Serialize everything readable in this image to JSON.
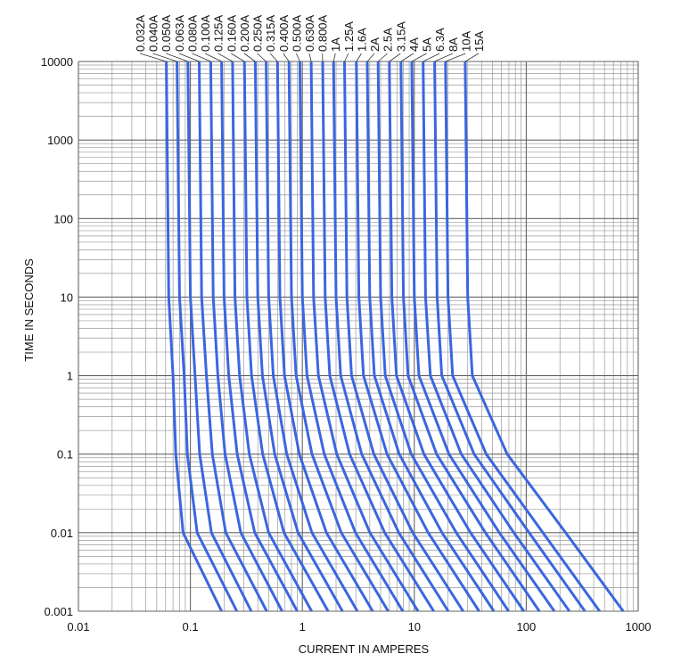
{
  "chart_data": {
    "type": "line",
    "x_label": "CURRENT IN AMPERES",
    "y_label": "TIME IN SECONDS",
    "xscale": "log",
    "yscale": "log",
    "grid": true,
    "minor_grid": true,
    "xlim": [
      0.01,
      1000
    ],
    "xticks": [
      0.01,
      0.1,
      1,
      10,
      100,
      1000
    ],
    "ylim": [
      0.001,
      10000
    ],
    "yticks": [
      0.001,
      0.01,
      0.1,
      1,
      10,
      100,
      1000,
      10000
    ],
    "series": [
      {
        "name": "0.032A",
        "color": "#3a66e0",
        "x": [
          0.061,
          0.064,
          0.07,
          0.074,
          0.086,
          0.19
        ],
        "values": [
          10000,
          10,
          1,
          0.1,
          0.01,
          0.001
        ]
      },
      {
        "name": "0.040A",
        "color": "#3a66e0",
        "x": [
          0.076,
          0.08,
          0.088,
          0.094,
          0.115,
          0.26
        ],
        "values": [
          10000,
          10,
          1,
          0.1,
          0.01,
          0.001
        ]
      },
      {
        "name": "0.050A",
        "color": "#3a66e0",
        "x": [
          0.095,
          0.1,
          0.11,
          0.121,
          0.154,
          0.35
        ],
        "values": [
          10000,
          10,
          1,
          0.1,
          0.01,
          0.001
        ]
      },
      {
        "name": "0.063A",
        "color": "#3a66e0",
        "x": [
          0.12,
          0.126,
          0.139,
          0.157,
          0.207,
          0.48
        ],
        "values": [
          10000,
          10,
          1,
          0.1,
          0.01,
          0.001
        ]
      },
      {
        "name": "0.080A",
        "color": "#3a66e0",
        "x": [
          0.152,
          0.16,
          0.176,
          0.204,
          0.282,
          0.66
        ],
        "values": [
          10000,
          10,
          1,
          0.1,
          0.01,
          0.001
        ]
      },
      {
        "name": "0.100A",
        "color": "#3a66e0",
        "x": [
          0.19,
          0.2,
          0.22,
          0.262,
          0.376,
          0.9
        ],
        "values": [
          10000,
          10,
          1,
          0.1,
          0.01,
          0.001
        ]
      },
      {
        "name": "0.125A",
        "color": "#3a66e0",
        "x": [
          0.238,
          0.25,
          0.275,
          0.336,
          0.5,
          1.21
        ],
        "values": [
          10000,
          10,
          1,
          0.1,
          0.01,
          0.001
        ]
      },
      {
        "name": "0.160A",
        "color": "#3a66e0",
        "x": [
          0.304,
          0.32,
          0.352,
          0.442,
          0.686,
          1.7
        ],
        "values": [
          10000,
          10,
          1,
          0.1,
          0.01,
          0.001
        ]
      },
      {
        "name": "0.200A",
        "color": "#3a66e0",
        "x": [
          0.38,
          0.4,
          0.44,
          0.566,
          0.916,
          2.28
        ],
        "values": [
          10000,
          10,
          1,
          0.1,
          0.01,
          0.001
        ]
      },
      {
        "name": "0.250A",
        "color": "#3a66e0",
        "x": [
          0.475,
          0.5,
          0.55,
          0.725,
          1.22,
          3.1
        ],
        "values": [
          10000,
          10,
          1,
          0.1,
          0.01,
          0.001
        ]
      },
      {
        "name": "0.315A",
        "color": "#3a66e0",
        "x": [
          0.6,
          0.63,
          0.693,
          0.939,
          1.64,
          4.25
        ],
        "values": [
          10000,
          10,
          1,
          0.1,
          0.01,
          0.001
        ]
      },
      {
        "name": "0.400A",
        "color": "#3a66e0",
        "x": [
          0.76,
          0.8,
          0.88,
          1.22,
          2.23,
          5.84
        ],
        "values": [
          10000,
          10,
          1,
          0.1,
          0.01,
          0.001
        ]
      },
      {
        "name": "0.500A",
        "color": "#3a66e0",
        "x": [
          0.95,
          1.0,
          1.1,
          1.57,
          2.98,
          7.9
        ],
        "values": [
          10000,
          10,
          1,
          0.1,
          0.01,
          0.001
        ]
      },
      {
        "name": "0.630A",
        "color": "#3a66e0",
        "x": [
          1.2,
          1.26,
          1.39,
          2.03,
          4.01,
          10.8
        ],
        "values": [
          10000,
          10,
          1,
          0.1,
          0.01,
          0.001
        ]
      },
      {
        "name": "0.800A",
        "color": "#3a66e0",
        "x": [
          1.52,
          1.6,
          1.76,
          2.64,
          5.44,
          14.9
        ],
        "values": [
          10000,
          10,
          1,
          0.1,
          0.01,
          0.001
        ]
      },
      {
        "name": "1A",
        "color": "#3a66e0",
        "x": [
          1.9,
          2,
          2.2,
          3.39,
          7.27,
          20.1
        ],
        "values": [
          10000,
          10,
          1,
          0.1,
          0.01,
          0.001
        ]
      },
      {
        "name": "1.25A",
        "color": "#3a66e0",
        "x": [
          2.38,
          2.5,
          2.75,
          4.35,
          9.7,
          27.3
        ],
        "values": [
          10000,
          10,
          1,
          0.1,
          0.01,
          0.001
        ]
      },
      {
        "name": "1.6A",
        "color": "#3a66e0",
        "x": [
          3.04,
          3.2,
          3.52,
          5.71,
          13.3,
          37.9
        ],
        "values": [
          10000,
          10,
          1,
          0.1,
          0.01,
          0.001
        ]
      },
      {
        "name": "2A",
        "color": "#3a66e0",
        "x": [
          3.8,
          4,
          4.4,
          7.34,
          17.7,
          51.4
        ],
        "values": [
          10000,
          10,
          1,
          0.1,
          0.01,
          0.001
        ]
      },
      {
        "name": "2.5A",
        "color": "#3a66e0",
        "x": [
          4.75,
          5,
          5.5,
          9.4,
          23.7,
          69.5
        ],
        "values": [
          10000,
          10,
          1,
          0.1,
          0.01,
          0.001
        ]
      },
      {
        "name": "3.15A",
        "color": "#3a66e0",
        "x": [
          5.99,
          6.3,
          6.93,
          12.2,
          31.8,
          95.1
        ],
        "values": [
          10000,
          10,
          1,
          0.1,
          0.01,
          0.001
        ]
      },
      {
        "name": "4A",
        "color": "#3a66e0",
        "x": [
          7.6,
          8,
          8.8,
          15.8,
          43.2,
          131
        ],
        "values": [
          10000,
          10,
          1,
          0.1,
          0.01,
          0.001
        ]
      },
      {
        "name": "5A",
        "color": "#3a66e0",
        "x": [
          9.5,
          10,
          11,
          20.4,
          57.5,
          178
        ],
        "values": [
          10000,
          10,
          1,
          0.1,
          0.01,
          0.001
        ]
      },
      {
        "name": "6.3A",
        "color": "#3a66e0",
        "x": [
          12,
          12.6,
          13.9,
          26.3,
          77.5,
          243
        ],
        "values": [
          10000,
          10,
          1,
          0.1,
          0.01,
          0.001
        ]
      },
      {
        "name": "8A",
        "color": "#3a66e0",
        "x": [
          15.2,
          16,
          17.6,
          34.2,
          106,
          334
        ],
        "values": [
          10000,
          10,
          1,
          0.1,
          0.01,
          0.001
        ]
      },
      {
        "name": "10A",
        "color": "#3a66e0",
        "x": [
          19,
          20,
          22,
          43.9,
          141,
          452
        ],
        "values": [
          10000,
          10,
          1,
          0.1,
          0.01,
          0.001
        ]
      },
      {
        "name": "15A",
        "color": "#3a66e0",
        "x": [
          28.5,
          30,
          33,
          67.5,
          225,
          735
        ],
        "values": [
          10000,
          10,
          1,
          0.1,
          0.01,
          0.001
        ]
      }
    ]
  }
}
